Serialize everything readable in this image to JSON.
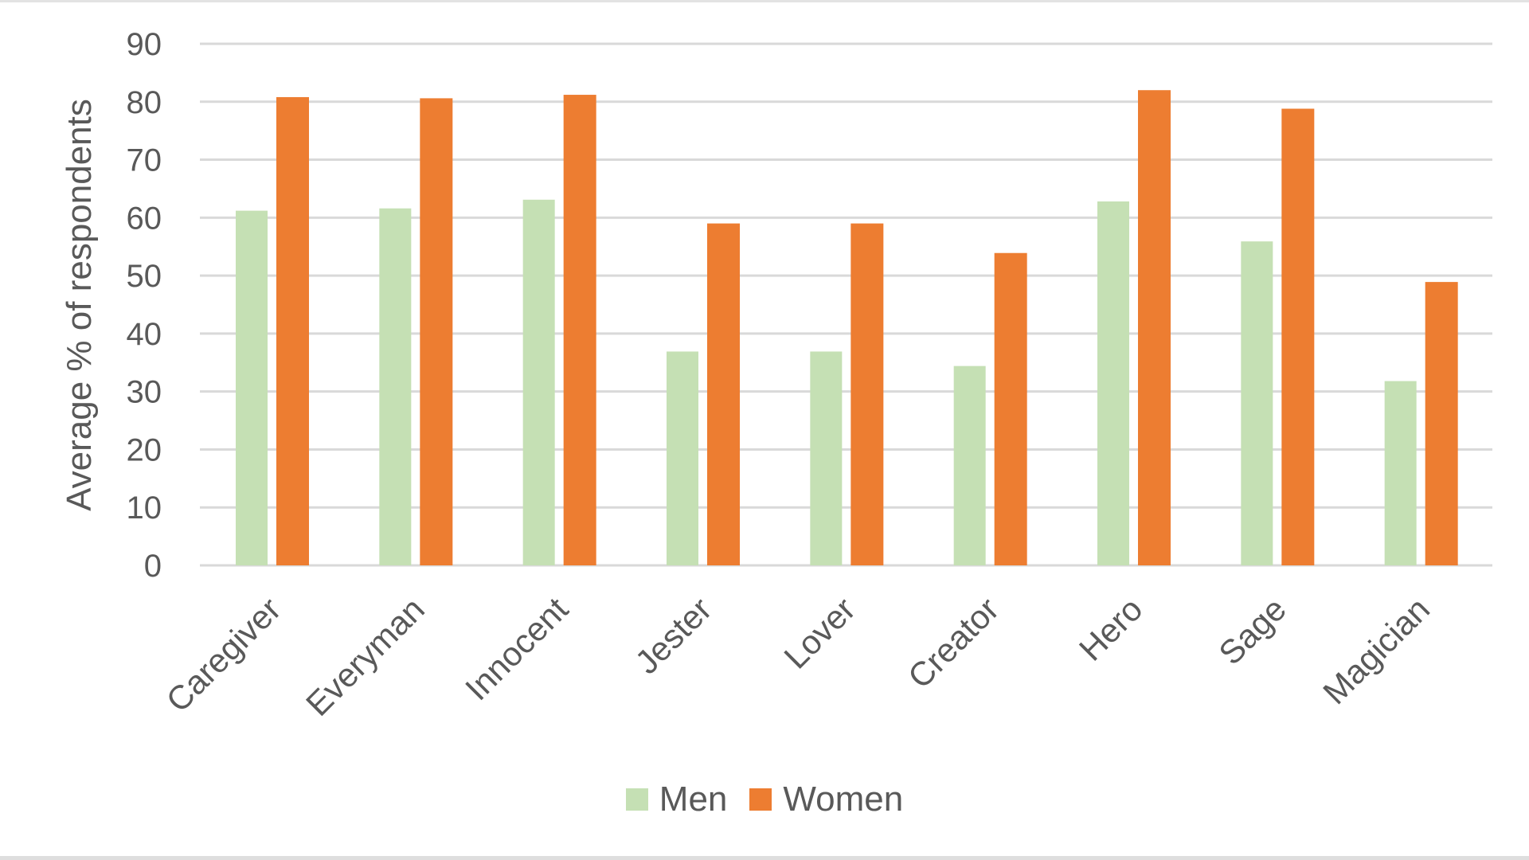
{
  "chart_data": {
    "type": "bar",
    "title": "",
    "xlabel": "",
    "ylabel": "Average % of respondents",
    "ylim": [
      0,
      90
    ],
    "yticks": [
      0,
      10,
      20,
      30,
      40,
      50,
      60,
      70,
      80,
      90
    ],
    "grid": true,
    "legend_position": "bottom",
    "categories": [
      "Caregiver",
      "Everyman",
      "Innocent",
      "Jester",
      "Lover",
      "Creator",
      "Hero",
      "Sage",
      "Magician"
    ],
    "series": [
      {
        "name": "Men",
        "color": "#C5E0B4",
        "values": [
          61.2,
          61.6,
          63.1,
          36.9,
          36.9,
          34.4,
          62.8,
          55.9,
          31.8
        ]
      },
      {
        "name": "Women",
        "color": "#ED7D31",
        "values": [
          80.8,
          80.6,
          81.2,
          59.0,
          59.0,
          53.9,
          82.0,
          78.8,
          48.9
        ]
      }
    ]
  },
  "colors": {
    "gridline": "#D9D9D9",
    "text": "#595959",
    "men": "#C5E0B4",
    "women": "#ED7D31"
  },
  "legend": {
    "items": [
      {
        "label": "Men",
        "color": "#C5E0B4"
      },
      {
        "label": "Women",
        "color": "#ED7D31"
      }
    ]
  }
}
